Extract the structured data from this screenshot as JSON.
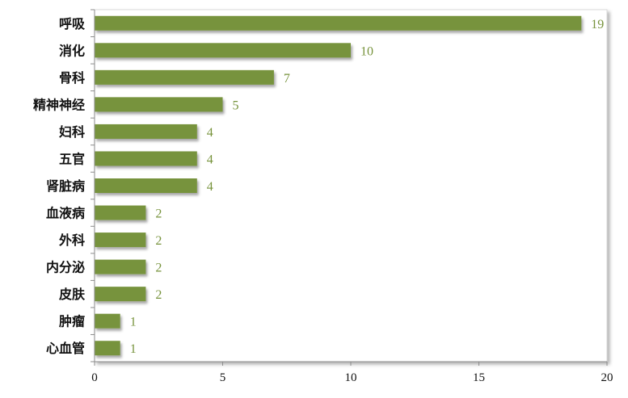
{
  "chart_data": {
    "type": "bar",
    "orientation": "horizontal",
    "title": "",
    "xlabel": "",
    "ylabel": "",
    "categories": [
      "呼吸",
      "消化",
      "骨科",
      "精神神经",
      "妇科",
      "五官",
      "肾脏病",
      "血液病",
      "外科",
      "内分泌",
      "皮肤",
      "肿瘤",
      "心血管"
    ],
    "values": [
      19,
      10,
      7,
      5,
      4,
      4,
      4,
      2,
      2,
      2,
      2,
      1,
      1
    ],
    "xlim": [
      0,
      20
    ],
    "xticks": [
      0,
      5,
      10,
      15,
      20
    ],
    "grid": false,
    "legend": "none",
    "data_labels": true,
    "colors": {
      "bar": "#77933C",
      "label": "#77933C",
      "axis": "#8c8c8c"
    }
  }
}
